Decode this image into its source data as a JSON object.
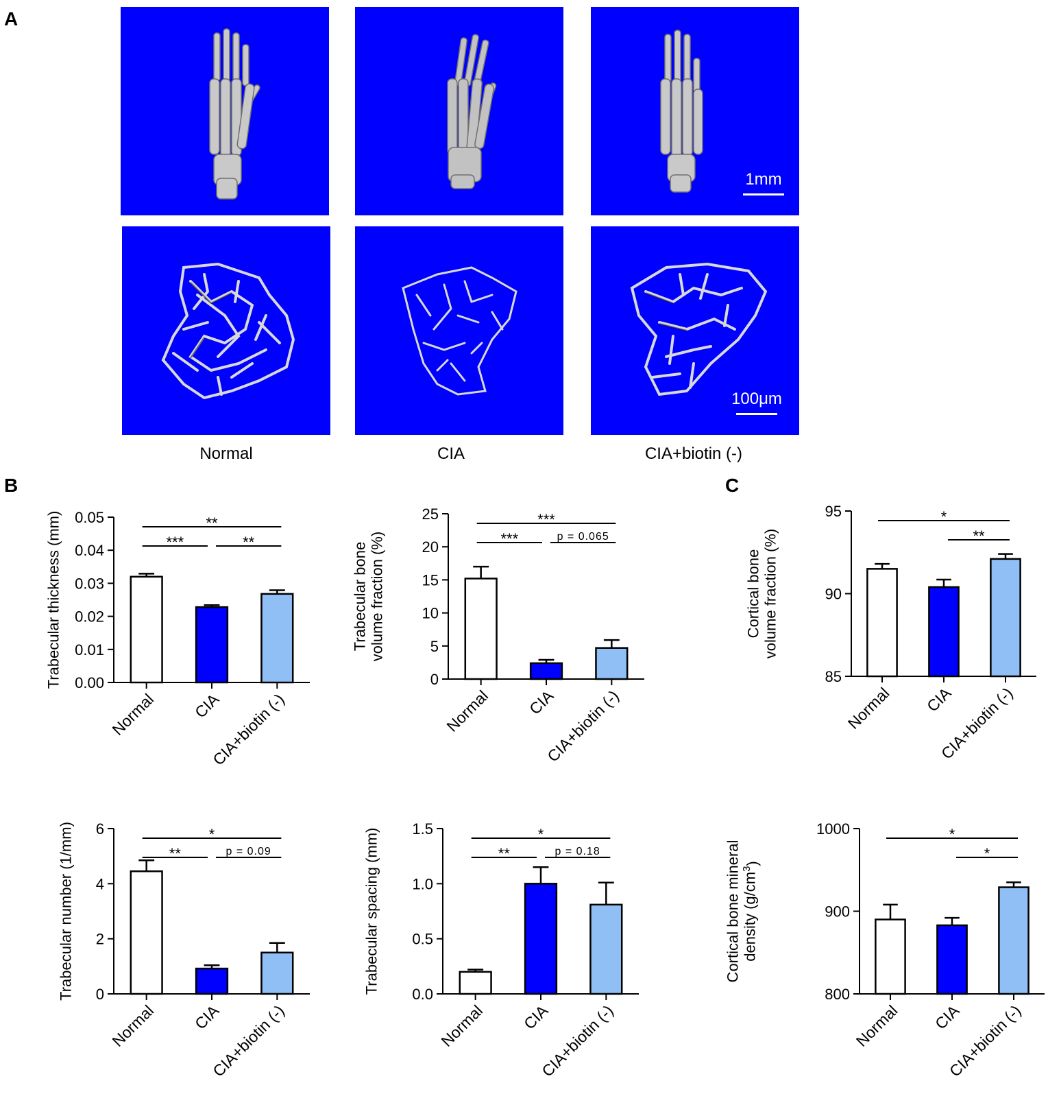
{
  "panels": {
    "a": "A",
    "b": "B",
    "c": "C"
  },
  "images": {
    "scale_top": "1mm",
    "scale_bottom": "100μm",
    "group_labels": [
      "Normal",
      "CIA",
      "CIA+biotin (-)"
    ],
    "background_color": "#0000ff"
  },
  "colors": {
    "normal": "#ffffff",
    "cia": "#0000ff",
    "biotin": "#8fbff5"
  },
  "chart_data": [
    {
      "id": "thickness",
      "type": "bar",
      "categories": [
        "Normal",
        "CIA",
        "CIA+biotin (-)"
      ],
      "values": [
        0.032,
        0.0228,
        0.0268
      ],
      "errors": [
        0.0009,
        0.0006,
        0.0011
      ],
      "ylabel": "Trabecular thickness (mm)",
      "ylim": [
        0,
        0.05
      ],
      "yticks": [
        "0.00",
        "0.01",
        "0.02",
        "0.03",
        "0.04",
        "0.05"
      ],
      "significance": [
        {
          "from": 0,
          "to": 2,
          "label": "**"
        },
        {
          "from": 0,
          "to": 1,
          "label": "***"
        },
        {
          "from": 1,
          "to": 2,
          "label": "**"
        }
      ]
    },
    {
      "id": "bvtv",
      "type": "bar",
      "categories": [
        "Normal",
        "CIA",
        "CIA+biotin (-)"
      ],
      "values": [
        15.2,
        2.4,
        4.7
      ],
      "errors": [
        1.8,
        0.5,
        1.2
      ],
      "ylabel": "Trabecular bone volume fraction (%)",
      "ylabel_lines": [
        "Trabecular bone",
        "volume fraction (%)"
      ],
      "ylim": [
        0,
        25
      ],
      "yticks": [
        "0",
        "5",
        "10",
        "15",
        "20",
        "25"
      ],
      "significance": [
        {
          "from": 0,
          "to": 2,
          "label": "***"
        },
        {
          "from": 0,
          "to": 1,
          "label": "***"
        },
        {
          "from": 1,
          "to": 2,
          "label": "p = 0.065"
        }
      ]
    },
    {
      "id": "cortical_fraction",
      "type": "bar",
      "categories": [
        "Normal",
        "CIA",
        "CIA+biotin (-)"
      ],
      "values": [
        91.5,
        90.4,
        92.1
      ],
      "errors": [
        0.3,
        0.45,
        0.3
      ],
      "ylabel": "Cortical bone volume fraction (%)",
      "ylabel_lines": [
        "Cortical bone",
        "volume fraction (%)"
      ],
      "ylim": [
        85,
        95
      ],
      "yticks": [
        "85",
        "90",
        "95"
      ],
      "significance": [
        {
          "from": 0,
          "to": 2,
          "label": "*"
        },
        {
          "from": 1,
          "to": 2,
          "label": "**"
        }
      ]
    },
    {
      "id": "number",
      "type": "bar",
      "categories": [
        "Normal",
        "CIA",
        "CIA+biotin (-)"
      ],
      "values": [
        4.45,
        0.92,
        1.5
      ],
      "errors": [
        0.4,
        0.12,
        0.35
      ],
      "ylabel": "Trabecular number (1/mm)",
      "ylim": [
        0,
        6
      ],
      "yticks": [
        "0",
        "2",
        "4",
        "6"
      ],
      "significance": [
        {
          "from": 0,
          "to": 2,
          "label": "*"
        },
        {
          "from": 0,
          "to": 1,
          "label": "**"
        },
        {
          "from": 1,
          "to": 2,
          "label": "p = 0.09"
        }
      ]
    },
    {
      "id": "spacing",
      "type": "bar",
      "categories": [
        "Normal",
        "CIA",
        "CIA+biotin (-)"
      ],
      "values": [
        0.2,
        1.0,
        0.81
      ],
      "errors": [
        0.02,
        0.15,
        0.2
      ],
      "ylabel": "Trabecular spacing (mm)",
      "ylim": [
        0,
        1.5
      ],
      "yticks": [
        "0.0",
        "0.5",
        "1.0",
        "1.5"
      ],
      "significance": [
        {
          "from": 0,
          "to": 2,
          "label": "*"
        },
        {
          "from": 0,
          "to": 1,
          "label": "**"
        },
        {
          "from": 1,
          "to": 2,
          "label": "p = 0.18"
        }
      ]
    },
    {
      "id": "density",
      "type": "bar",
      "categories": [
        "Normal",
        "CIA",
        "CIA+biotin (-)"
      ],
      "values": [
        890,
        883,
        929
      ],
      "errors": [
        18,
        9,
        6
      ],
      "ylabel": "Cortical bone mineral density (g/cm3)",
      "ylabel_lines": [
        "Cortical bone mineral",
        "density (g/cm3)"
      ],
      "ylim": [
        800,
        1000
      ],
      "yticks": [
        "800",
        "900",
        "1000"
      ],
      "significance": [
        {
          "from": 0,
          "to": 2,
          "label": "*"
        },
        {
          "from": 1,
          "to": 2,
          "label": "*"
        }
      ]
    }
  ]
}
